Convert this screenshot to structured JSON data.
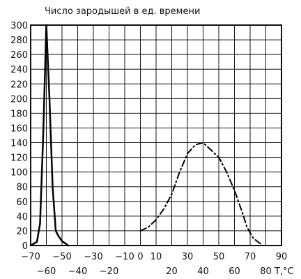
{
  "chart_data": {
    "type": "line",
    "title": "Число зародышей в ед. времени",
    "xlabel": "T,°C",
    "ylabel": "",
    "xlim": [
      -70,
      90
    ],
    "ylim": [
      0,
      300
    ],
    "grid": true,
    "x_ticks_upper": [
      -70,
      -50,
      -30,
      -10,
      0,
      10,
      30,
      50,
      70,
      90
    ],
    "x_tick_labels_upper": [
      "−70",
      "−50",
      "−30",
      "−10",
      "0",
      "10",
      "30",
      "50",
      "70",
      "90"
    ],
    "x_ticks_lower": [
      -60,
      -40,
      -20,
      20,
      40,
      60,
      80
    ],
    "x_tick_labels_lower": [
      "−60",
      "−40",
      "−20",
      "20",
      "40",
      "60",
      "80"
    ],
    "y_ticks": [
      0,
      20,
      40,
      60,
      80,
      100,
      120,
      140,
      160,
      180,
      200,
      220,
      240,
      260,
      280,
      300
    ],
    "series": [
      {
        "style": "solid",
        "points": [
          [
            -70,
            0
          ],
          [
            -66,
            5
          ],
          [
            -64,
            30
          ],
          [
            -62,
            150
          ],
          [
            -60,
            300
          ],
          [
            -58,
            200
          ],
          [
            -56,
            80
          ],
          [
            -54,
            20
          ],
          [
            -52,
            12
          ],
          [
            -50,
            6
          ],
          [
            -46,
            0
          ]
        ]
      },
      {
        "style": "dash-dot",
        "points": [
          [
            0,
            20
          ],
          [
            5,
            25
          ],
          [
            10,
            35
          ],
          [
            15,
            50
          ],
          [
            20,
            70
          ],
          [
            25,
            100
          ],
          [
            30,
            125
          ],
          [
            35,
            137
          ],
          [
            40,
            140
          ],
          [
            45,
            130
          ],
          [
            50,
            120
          ],
          [
            55,
            100
          ],
          [
            60,
            75
          ],
          [
            65,
            45
          ],
          [
            68,
            25
          ],
          [
            72,
            10
          ],
          [
            78,
            0
          ]
        ]
      }
    ]
  }
}
